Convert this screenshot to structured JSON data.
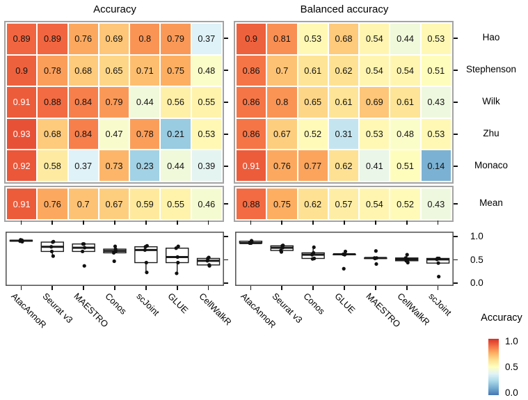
{
  "chart_data": {
    "type": [
      "heatmap",
      "boxplot"
    ],
    "value_range": [
      0,
      1
    ],
    "datasets": [
      "Hao",
      "Stephenson",
      "Wilk",
      "Zhu",
      "Monaco"
    ],
    "mean_row_label": "Mean",
    "panels": [
      {
        "title": "Accuracy",
        "methods": [
          "AtacAnnoR",
          "Seurat v3",
          "MAESTRO",
          "Conos",
          "scJoint",
          "GLUE",
          "CellWalkR"
        ],
        "values": [
          [
            0.89,
            0.89,
            0.76,
            0.69,
            0.8,
            0.79,
            0.37
          ],
          [
            0.9,
            0.78,
            0.68,
            0.65,
            0.71,
            0.75,
            0.48
          ],
          [
            0.91,
            0.88,
            0.84,
            0.79,
            0.44,
            0.56,
            0.55
          ],
          [
            0.93,
            0.68,
            0.84,
            0.47,
            0.78,
            0.21,
            0.53
          ],
          [
            0.92,
            0.58,
            0.37,
            0.73,
            0.23,
            0.44,
            0.39
          ]
        ],
        "mean": [
          0.91,
          0.76,
          0.7,
          0.67,
          0.59,
          0.55,
          0.46
        ]
      },
      {
        "title": "Balanced accuracy",
        "methods": [
          "AtacAnnoR",
          "Seurat v3",
          "Conos",
          "GLUE",
          "MAESTRO",
          "CellWalkR",
          "scJoint"
        ],
        "values": [
          [
            0.9,
            0.81,
            0.53,
            0.68,
            0.54,
            0.44,
            0.53
          ],
          [
            0.86,
            0.7,
            0.61,
            0.62,
            0.54,
            0.54,
            0.51
          ],
          [
            0.86,
            0.8,
            0.65,
            0.61,
            0.69,
            0.61,
            0.43
          ],
          [
            0.86,
            0.67,
            0.52,
            0.31,
            0.53,
            0.48,
            0.53
          ],
          [
            0.91,
            0.76,
            0.77,
            0.62,
            0.41,
            0.51,
            0.14
          ]
        ],
        "mean": [
          0.88,
          0.75,
          0.62,
          0.57,
          0.54,
          0.52,
          0.43
        ]
      }
    ],
    "boxplot_yticks": [
      "1.0",
      "0.5",
      "0.0"
    ],
    "legend": {
      "title": "Accuracy",
      "ticks": [
        "1.0",
        "0.5",
        "0.0"
      ]
    },
    "colormap": {
      "anchors": [
        [
          0.0,
          "#4575b4"
        ],
        [
          0.125,
          "#74add1"
        ],
        [
          0.25,
          "#abd9e9"
        ],
        [
          0.375,
          "#e0f3f8"
        ],
        [
          0.5,
          "#ffffbf"
        ],
        [
          0.625,
          "#fee090"
        ],
        [
          0.75,
          "#fdae61"
        ],
        [
          0.875,
          "#f46d43"
        ],
        [
          1.0,
          "#d73027"
        ]
      ]
    }
  }
}
